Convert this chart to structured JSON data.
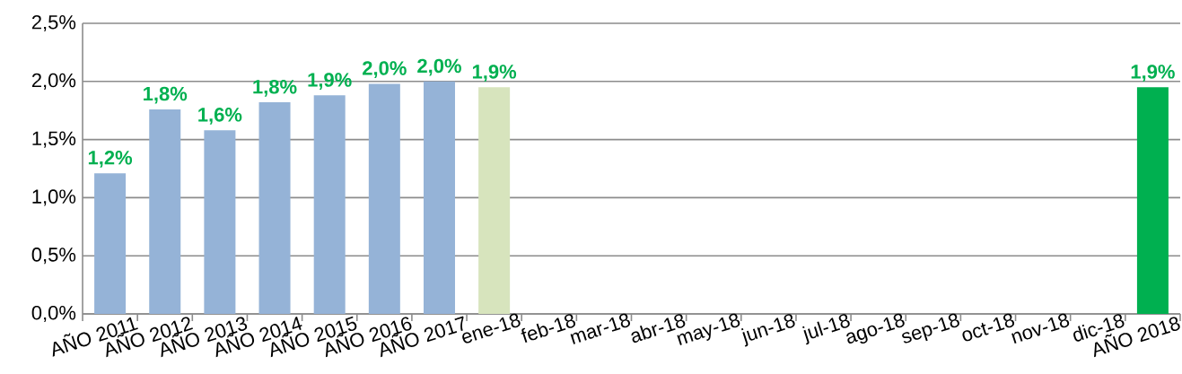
{
  "chart_data": {
    "type": "bar",
    "categories": [
      "AÑO 2011",
      "AÑO 2012",
      "AÑO 2013",
      "AÑO 2014",
      "AÑO 2015",
      "AÑO 2016",
      "AÑO 2017",
      "ene-18",
      "feb-18",
      "mar-18",
      "abr-18",
      "may-18",
      "jun-18",
      "jul-18",
      "ago-18",
      "sep-18",
      "oct-18",
      "nov-18",
      "dic-18",
      "AÑO 2018"
    ],
    "values": [
      1.21,
      1.76,
      1.58,
      1.82,
      1.88,
      1.98,
      2.0,
      1.95,
      null,
      null,
      null,
      null,
      null,
      null,
      null,
      null,
      null,
      null,
      null,
      1.95
    ],
    "value_labels": [
      "1,2%",
      "1,8%",
      "1,6%",
      "1,8%",
      "1,9%",
      "2,0%",
      "2,0%",
      "1,9%",
      null,
      null,
      null,
      null,
      null,
      null,
      null,
      null,
      null,
      null,
      null,
      "1,9%"
    ],
    "colors": [
      "#95b3d7",
      "#95b3d7",
      "#95b3d7",
      "#95b3d7",
      "#95b3d7",
      "#95b3d7",
      "#95b3d7",
      "#d7e4bd",
      "#d7e4bd",
      "#d7e4bd",
      "#d7e4bd",
      "#d7e4bd",
      "#d7e4bd",
      "#d7e4bd",
      "#d7e4bd",
      "#d7e4bd",
      "#d7e4bd",
      "#d7e4bd",
      "#d7e4bd",
      "#00b050"
    ],
    "ylim": [
      0,
      2.5
    ],
    "yticks": [
      {
        "value": 0,
        "label": "0,0%"
      },
      {
        "value": 0.5,
        "label": "0,5%"
      },
      {
        "value": 1.0,
        "label": "1,0%"
      },
      {
        "value": 1.5,
        "label": "1,5%"
      },
      {
        "value": 2.0,
        "label": "2,0%"
      },
      {
        "value": 2.5,
        "label": "2,5%"
      }
    ],
    "grid": "y"
  }
}
